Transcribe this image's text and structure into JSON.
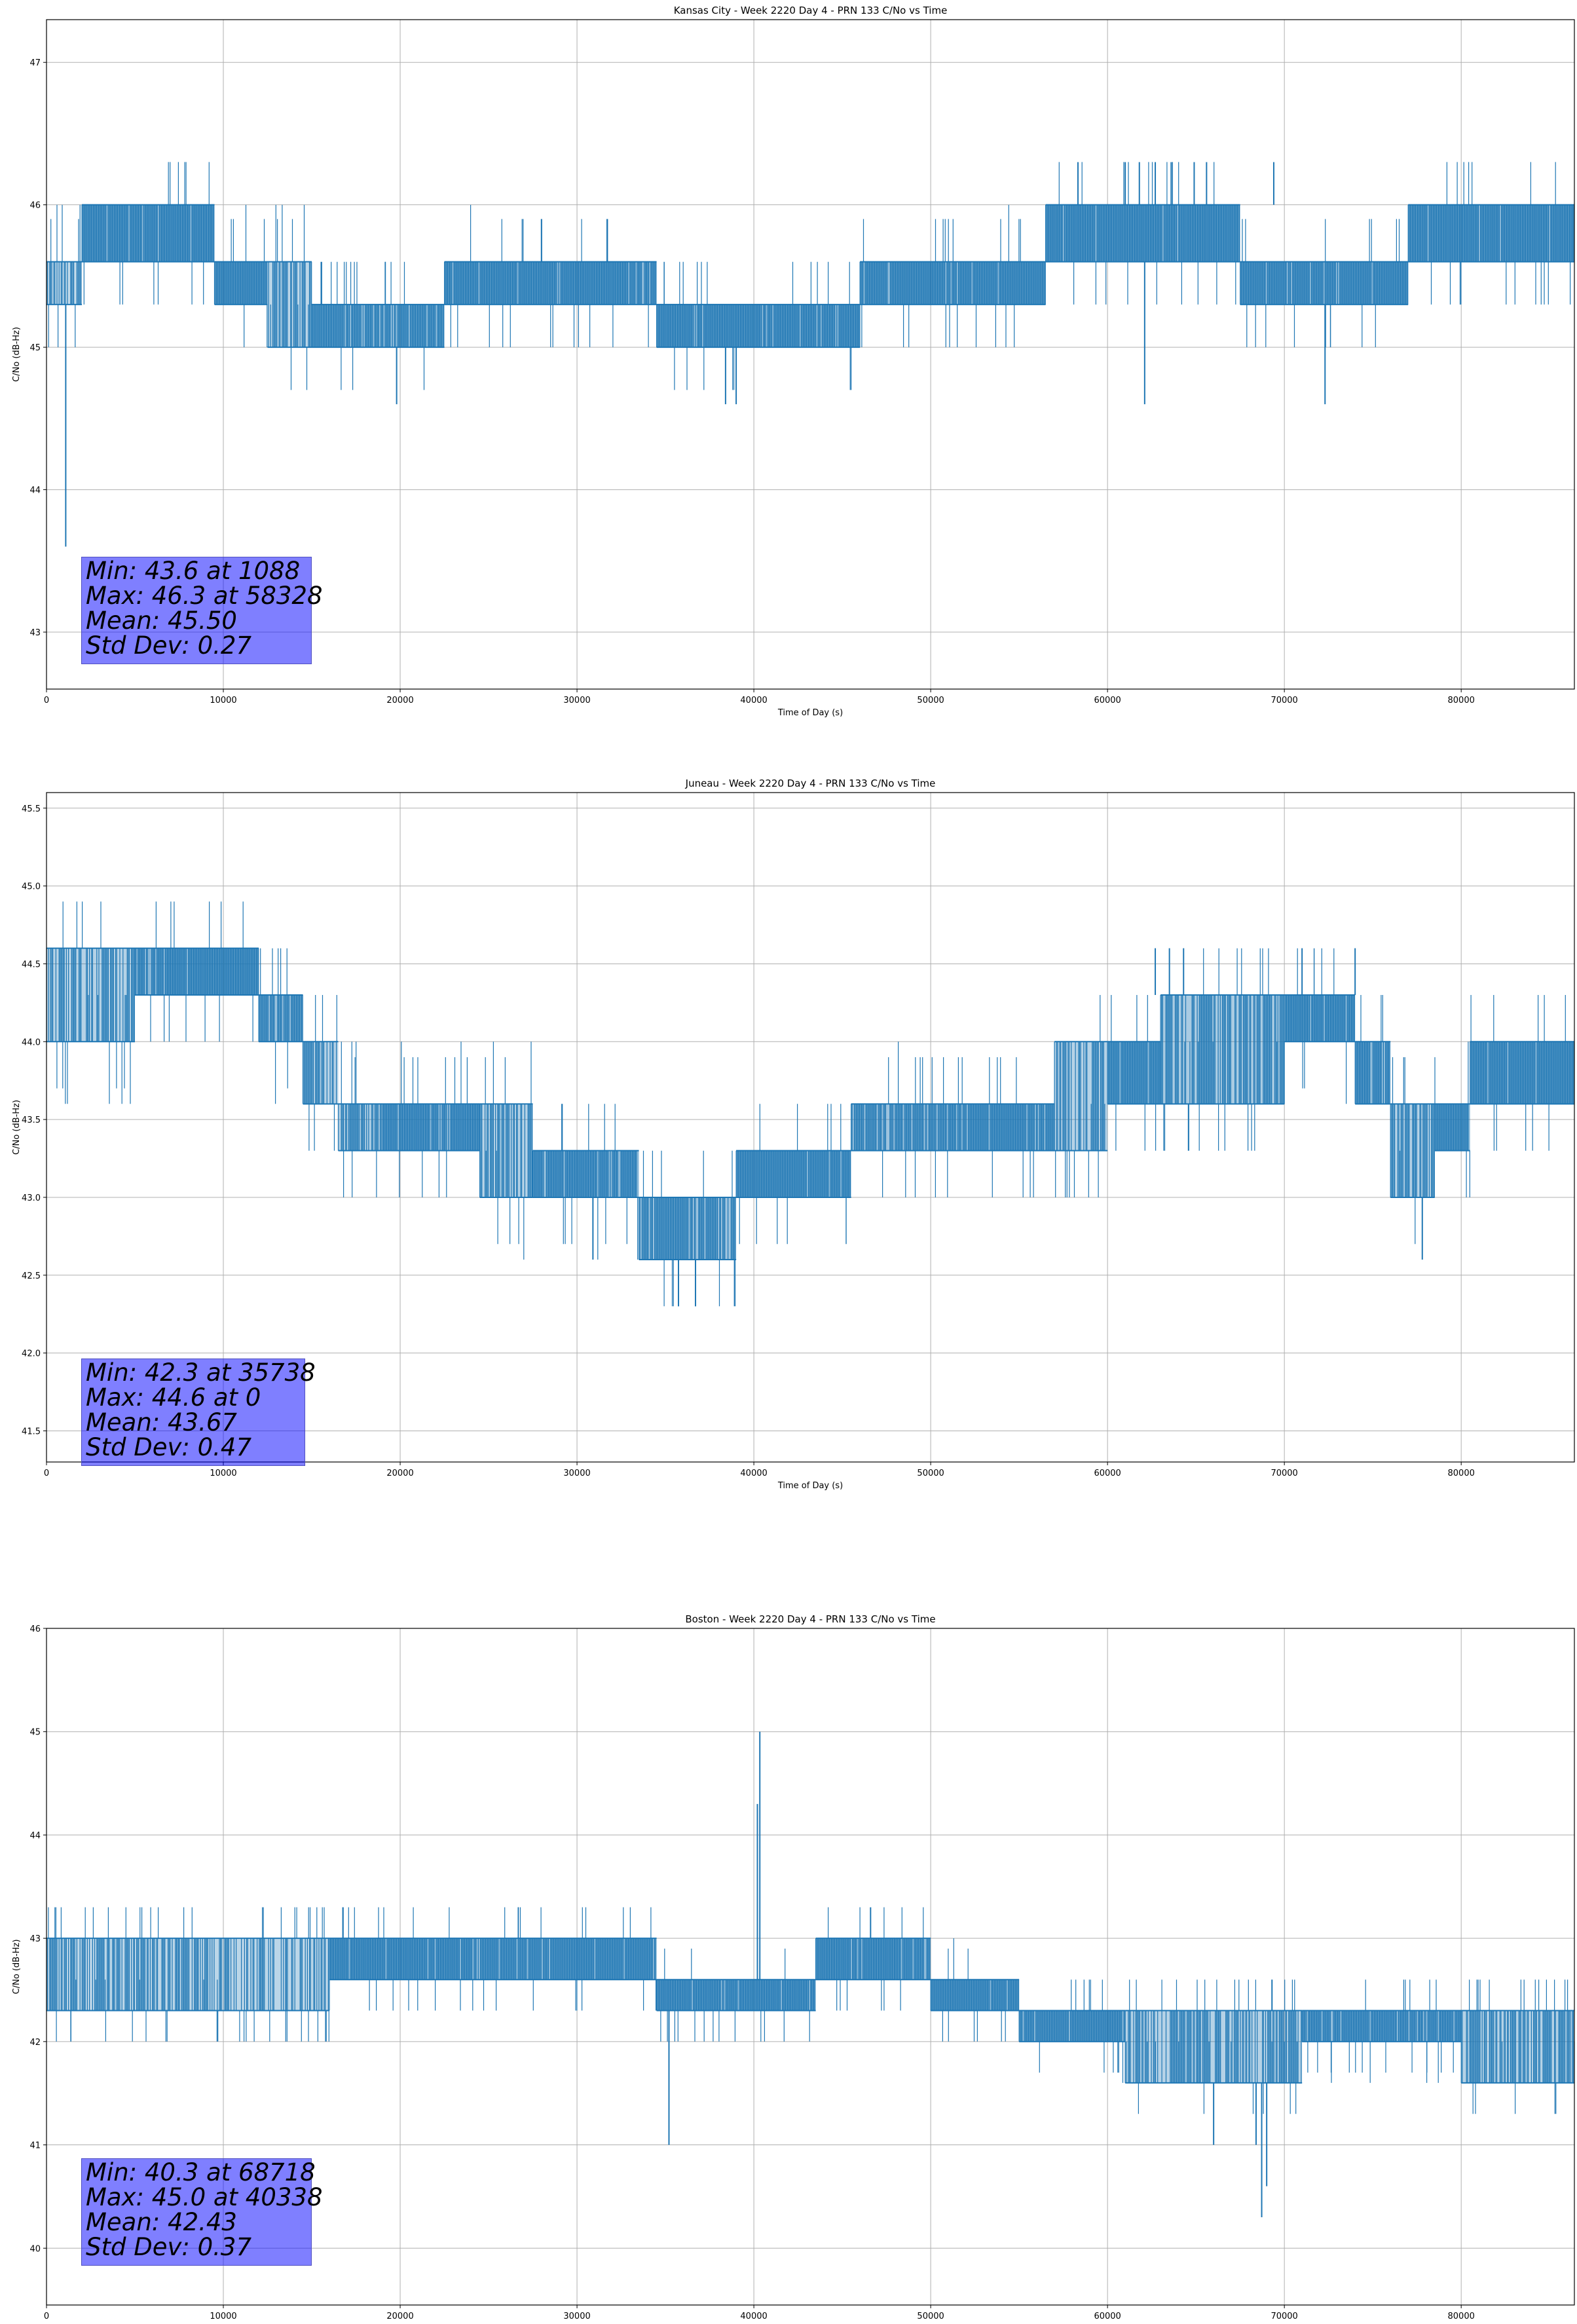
{
  "chart_data": [
    {
      "type": "line",
      "title": "Kansas City - Week 2220 Day 4 - PRN 133 C/No vs Time",
      "xlabel": "Time of Day (s)",
      "ylabel": "C/No (dB-Hz)",
      "xlim": [
        0,
        86400
      ],
      "ylim": [
        42.6,
        47.3
      ],
      "xticks": [
        0,
        10000,
        20000,
        30000,
        40000,
        50000,
        60000,
        70000,
        80000
      ],
      "yticks": [
        43,
        44,
        45,
        46,
        47
      ],
      "ytick_labels": [
        "43",
        "44",
        "45",
        "46",
        "47"
      ],
      "grid": true,
      "color": "#1f77b4",
      "stats": [
        "Min: 43.6 at 1088",
        "Max: 46.3 at 58328",
        "Mean: 45.50",
        "Std Dev: 0.27"
      ],
      "levels": [
        45.0,
        45.3,
        45.6,
        46.0,
        46.3
      ],
      "bands": [
        {
          "x": [
            0,
            2000
          ],
          "low": 45.3,
          "high": 45.6,
          "fill": 0.5
        },
        {
          "x": [
            2000,
            9500
          ],
          "low": 45.6,
          "high": 46.0,
          "fill": 0.95
        },
        {
          "x": [
            9500,
            12500
          ],
          "low": 45.3,
          "high": 45.6,
          "fill": 0.95
        },
        {
          "x": [
            12500,
            15000
          ],
          "low": 45.0,
          "high": 45.6,
          "fill": 0.55
        },
        {
          "x": [
            15000,
            22500
          ],
          "low": 45.0,
          "high": 45.3,
          "fill": 0.85
        },
        {
          "x": [
            22500,
            34500
          ],
          "low": 45.3,
          "high": 45.6,
          "fill": 0.95
        },
        {
          "x": [
            34500,
            46000
          ],
          "low": 45.0,
          "high": 45.3,
          "fill": 0.95
        },
        {
          "x": [
            46000,
            56500
          ],
          "low": 45.3,
          "high": 45.6,
          "fill": 0.95
        },
        {
          "x": [
            56500,
            67500
          ],
          "low": 45.6,
          "high": 46.0,
          "fill": 0.95
        },
        {
          "x": [
            67500,
            77000
          ],
          "low": 45.3,
          "high": 45.6,
          "fill": 0.95
        },
        {
          "x": [
            77000,
            86400
          ],
          "low": 45.6,
          "high": 46.0,
          "fill": 0.95
        }
      ],
      "spikes": [
        {
          "x": 1088,
          "y0": 45.3,
          "y1": 43.6
        },
        {
          "x": 19800,
          "y0": 45.0,
          "y1": 44.6
        },
        {
          "x": 38400,
          "y0": 45.0,
          "y1": 44.6
        },
        {
          "x": 39000,
          "y0": 45.0,
          "y1": 44.6
        },
        {
          "x": 62100,
          "y0": 45.6,
          "y1": 44.6
        },
        {
          "x": 72300,
          "y0": 45.3,
          "y1": 44.6
        },
        {
          "x": 58328,
          "y0": 46.0,
          "y1": 46.3
        },
        {
          "x": 61000,
          "y0": 46.0,
          "y1": 46.3
        },
        {
          "x": 61800,
          "y0": 46.0,
          "y1": 46.3
        },
        {
          "x": 62700,
          "y0": 46.0,
          "y1": 46.3
        },
        {
          "x": 63600,
          "y0": 46.0,
          "y1": 46.3
        },
        {
          "x": 64900,
          "y0": 46.0,
          "y1": 46.3
        },
        {
          "x": 65600,
          "y0": 46.0,
          "y1": 46.3
        },
        {
          "x": 69400,
          "y0": 46.0,
          "y1": 46.3
        }
      ]
    },
    {
      "type": "line",
      "title": "Juneau - Week 2220 Day 4 - PRN 133 C/No vs Time",
      "xlabel": "Time of Day (s)",
      "ylabel": "C/No (dB-Hz)",
      "xlim": [
        0,
        86400
      ],
      "ylim": [
        41.3,
        45.6
      ],
      "xticks": [
        0,
        10000,
        20000,
        30000,
        40000,
        50000,
        60000,
        70000,
        80000
      ],
      "yticks": [
        41.5,
        42.0,
        42.5,
        43.0,
        43.5,
        44.0,
        44.5,
        45.0,
        45.5
      ],
      "ytick_labels": [
        "41.5",
        "42.0",
        "42.5",
        "43.0",
        "43.5",
        "44.0",
        "44.5",
        "45.0",
        "45.5"
      ],
      "grid": true,
      "color": "#1f77b4",
      "stats": [
        "Min: 42.3 at 35738",
        "Max: 44.6 at 0",
        "Mean: 43.67",
        "Std Dev: 0.47"
      ],
      "levels": [
        42.6,
        43.0,
        43.3,
        43.6,
        44.0,
        44.3,
        44.6
      ],
      "bands": [
        {
          "x": [
            0,
            5000
          ],
          "low": 44.0,
          "high": 44.6,
          "fill": 0.6
        },
        {
          "x": [
            5000,
            12000
          ],
          "low": 44.3,
          "high": 44.6,
          "fill": 0.95
        },
        {
          "x": [
            12000,
            14500
          ],
          "low": 44.0,
          "high": 44.3,
          "fill": 0.8
        },
        {
          "x": [
            14500,
            16500
          ],
          "low": 43.6,
          "high": 44.0,
          "fill": 0.6
        },
        {
          "x": [
            16500,
            19000
          ],
          "low": 43.3,
          "high": 43.6,
          "fill": 0.7
        },
        {
          "x": [
            19000,
            24500
          ],
          "low": 43.3,
          "high": 43.6,
          "fill": 0.9
        },
        {
          "x": [
            24500,
            27500
          ],
          "low": 43.0,
          "high": 43.6,
          "fill": 0.6
        },
        {
          "x": [
            27500,
            33500
          ],
          "low": 43.0,
          "high": 43.3,
          "fill": 0.9
        },
        {
          "x": [
            33500,
            39000
          ],
          "low": 42.6,
          "high": 43.0,
          "fill": 0.8
        },
        {
          "x": [
            39000,
            45500
          ],
          "low": 43.0,
          "high": 43.3,
          "fill": 0.95
        },
        {
          "x": [
            45500,
            51000
          ],
          "low": 43.3,
          "high": 43.6,
          "fill": 0.8
        },
        {
          "x": [
            51000,
            57000
          ],
          "low": 43.3,
          "high": 43.6,
          "fill": 0.9
        },
        {
          "x": [
            57000,
            60000
          ],
          "low": 43.3,
          "high": 44.0,
          "fill": 0.6
        },
        {
          "x": [
            60000,
            63000
          ],
          "low": 43.6,
          "high": 44.0,
          "fill": 0.9
        },
        {
          "x": [
            63000,
            70000
          ],
          "low": 43.6,
          "high": 44.3,
          "fill": 0.7
        },
        {
          "x": [
            70000,
            74000
          ],
          "low": 44.0,
          "high": 44.3,
          "fill": 0.95
        },
        {
          "x": [
            74000,
            76000
          ],
          "low": 43.6,
          "high": 44.0,
          "fill": 0.9
        },
        {
          "x": [
            76000,
            78500
          ],
          "low": 43.0,
          "high": 43.6,
          "fill": 0.6
        },
        {
          "x": [
            78500,
            80500
          ],
          "low": 43.3,
          "high": 43.6,
          "fill": 0.9
        },
        {
          "x": [
            80500,
            86400
          ],
          "low": 43.6,
          "high": 44.0,
          "fill": 0.95
        }
      ],
      "spikes": [
        {
          "x": 30900,
          "y0": 43.0,
          "y1": 42.6
        },
        {
          "x": 35738,
          "y0": 42.6,
          "y1": 42.3
        },
        {
          "x": 36700,
          "y0": 42.6,
          "y1": 42.3
        },
        {
          "x": 77800,
          "y0": 43.0,
          "y1": 42.6
        },
        {
          "x": 71000,
          "y0": 44.3,
          "y1": 44.6
        },
        {
          "x": 74000,
          "y0": 44.3,
          "y1": 44.6
        },
        {
          "x": 62700,
          "y0": 44.3,
          "y1": 44.6
        },
        {
          "x": 63500,
          "y0": 44.3,
          "y1": 44.6
        },
        {
          "x": 64300,
          "y0": 44.3,
          "y1": 44.6
        }
      ]
    },
    {
      "type": "line",
      "title": "Boston - Week 2220 Day 4 - PRN 133 C/No vs Time",
      "xlabel": "Time of Day (s)",
      "ylabel": "C/No (dB-Hz)",
      "xlim": [
        0,
        86400
      ],
      "ylim": [
        39.45,
        46.0
      ],
      "xticks": [
        0,
        10000,
        20000,
        30000,
        40000,
        50000,
        60000,
        70000,
        80000
      ],
      "yticks": [
        40,
        41,
        42,
        43,
        44,
        45,
        46
      ],
      "ytick_labels": [
        "40",
        "41",
        "42",
        "43",
        "44",
        "45",
        "46"
      ],
      "grid": true,
      "color": "#1f77b4",
      "stats": [
        "Min: 40.3 at 68718",
        "Max: 45.0 at 40338",
        "Mean: 42.43",
        "Std Dev: 0.37"
      ],
      "levels": [
        41.6,
        42.0,
        42.3,
        42.6,
        43.0,
        43.3
      ],
      "bands": [
        {
          "x": [
            0,
            16000
          ],
          "low": 42.3,
          "high": 43.0,
          "fill": 0.55
        },
        {
          "x": [
            16000,
            24000
          ],
          "low": 42.6,
          "high": 43.0,
          "fill": 0.95
        },
        {
          "x": [
            24000,
            30000
          ],
          "low": 42.6,
          "high": 43.0,
          "fill": 0.9
        },
        {
          "x": [
            30000,
            34500
          ],
          "low": 42.6,
          "high": 43.0,
          "fill": 0.95
        },
        {
          "x": [
            34500,
            43500
          ],
          "low": 42.3,
          "high": 42.6,
          "fill": 0.95
        },
        {
          "x": [
            43500,
            48000
          ],
          "low": 42.6,
          "high": 43.0,
          "fill": 0.95
        },
        {
          "x": [
            48000,
            50000
          ],
          "low": 42.6,
          "high": 43.0,
          "fill": 0.9
        },
        {
          "x": [
            50000,
            55000
          ],
          "low": 42.3,
          "high": 42.6,
          "fill": 0.95
        },
        {
          "x": [
            55000,
            61000
          ],
          "low": 42.0,
          "high": 42.3,
          "fill": 0.9
        },
        {
          "x": [
            61000,
            71000
          ],
          "low": 41.6,
          "high": 42.3,
          "fill": 0.6
        },
        {
          "x": [
            71000,
            80000
          ],
          "low": 42.0,
          "high": 42.3,
          "fill": 0.9
        },
        {
          "x": [
            80000,
            86400
          ],
          "low": 41.6,
          "high": 42.3,
          "fill": 0.6
        }
      ],
      "spikes": [
        {
          "x": 35200,
          "y0": 42.3,
          "y1": 41.0
        },
        {
          "x": 40338,
          "y0": 42.6,
          "y1": 45.0
        },
        {
          "x": 40200,
          "y0": 42.6,
          "y1": 44.3
        },
        {
          "x": 46600,
          "y0": 43.0,
          "y1": 43.3
        },
        {
          "x": 68718,
          "y0": 41.6,
          "y1": 40.3
        },
        {
          "x": 69000,
          "y0": 41.6,
          "y1": 40.6
        },
        {
          "x": 68400,
          "y0": 41.6,
          "y1": 41.0
        },
        {
          "x": 66000,
          "y0": 41.6,
          "y1": 41.0
        },
        {
          "x": 69300,
          "y0": 42.3,
          "y1": 42.6
        }
      ]
    }
  ]
}
